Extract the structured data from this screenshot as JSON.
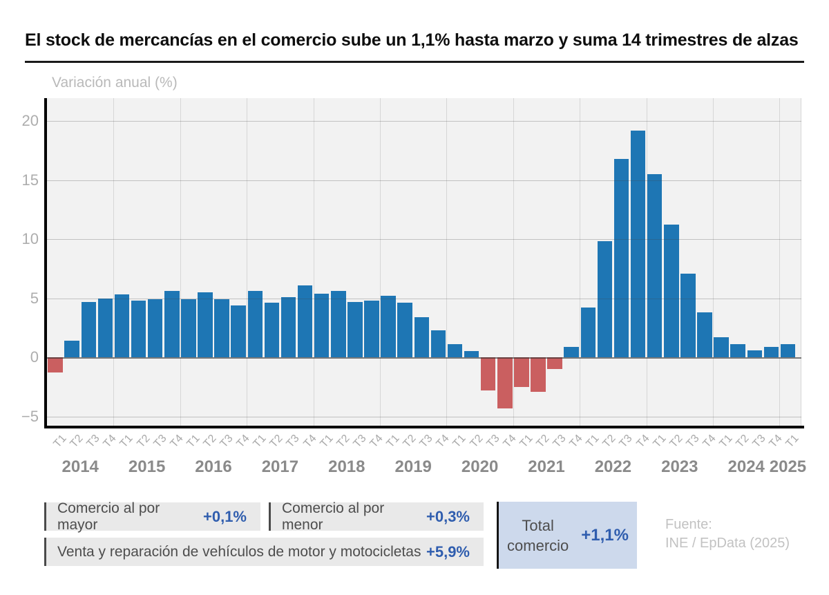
{
  "title": "El stock de mercancías en el comercio sube un 1,1% hasta marzo y suma 14 trimestres de alzas",
  "chart_data": {
    "type": "bar",
    "ylabel": "Variación anual (%)",
    "unit": "%",
    "ylim": [
      -5.9,
      21.9
    ],
    "grid": true,
    "legend_position": "none",
    "yticks": [
      {
        "value": 20,
        "label": "20"
      },
      {
        "value": 15,
        "label": "15"
      },
      {
        "value": 10,
        "label": "10"
      },
      {
        "value": 5,
        "label": "5"
      },
      {
        "value": 0,
        "label": "0"
      },
      {
        "value": -5,
        "label": "−5"
      }
    ],
    "quarter_cycle": [
      "T1",
      "T2",
      "T3",
      "T4"
    ],
    "years": [
      {
        "label": "2014",
        "values": [
          -1.3,
          1.4,
          4.7,
          5.0
        ]
      },
      {
        "label": "2015",
        "values": [
          5.3,
          4.8,
          4.9,
          5.6
        ]
      },
      {
        "label": "2016",
        "values": [
          4.9,
          5.5,
          4.9,
          4.4
        ]
      },
      {
        "label": "2017",
        "values": [
          5.6,
          4.6,
          5.1,
          6.1
        ]
      },
      {
        "label": "2018",
        "values": [
          5.4,
          5.6,
          4.7,
          4.8
        ]
      },
      {
        "label": "2019",
        "values": [
          5.2,
          4.6,
          3.4,
          2.3
        ]
      },
      {
        "label": "2020",
        "values": [
          1.1,
          0.5,
          -2.8,
          -4.3
        ]
      },
      {
        "label": "2021",
        "values": [
          -2.5,
          -2.9,
          -1.0,
          0.9
        ]
      },
      {
        "label": "2022",
        "values": [
          4.2,
          9.8,
          16.8,
          19.2
        ]
      },
      {
        "label": "2023",
        "values": [
          15.5,
          11.2,
          7.1,
          3.8
        ]
      },
      {
        "label": "2024",
        "values": [
          1.7,
          1.1,
          0.6,
          0.9
        ]
      },
      {
        "label": "2025",
        "values": [
          1.1
        ]
      }
    ],
    "positive_color": "#1e76b4",
    "negative_color": "#ca5f60"
  },
  "footer": {
    "badges": [
      {
        "label": "Comercio al por mayor",
        "value": "+0,1%"
      },
      {
        "label": "Comercio al por menor",
        "value": "+0,3%"
      },
      {
        "label": "Venta y reparación de vehículos de motor y motocicletas",
        "value": "+5,9%"
      }
    ],
    "total": {
      "label_line1": "Total",
      "label_line2": "comercio",
      "value": "+1,1%"
    },
    "source_line1": "Fuente:",
    "source_line2": "INE / EpData (2025)"
  }
}
